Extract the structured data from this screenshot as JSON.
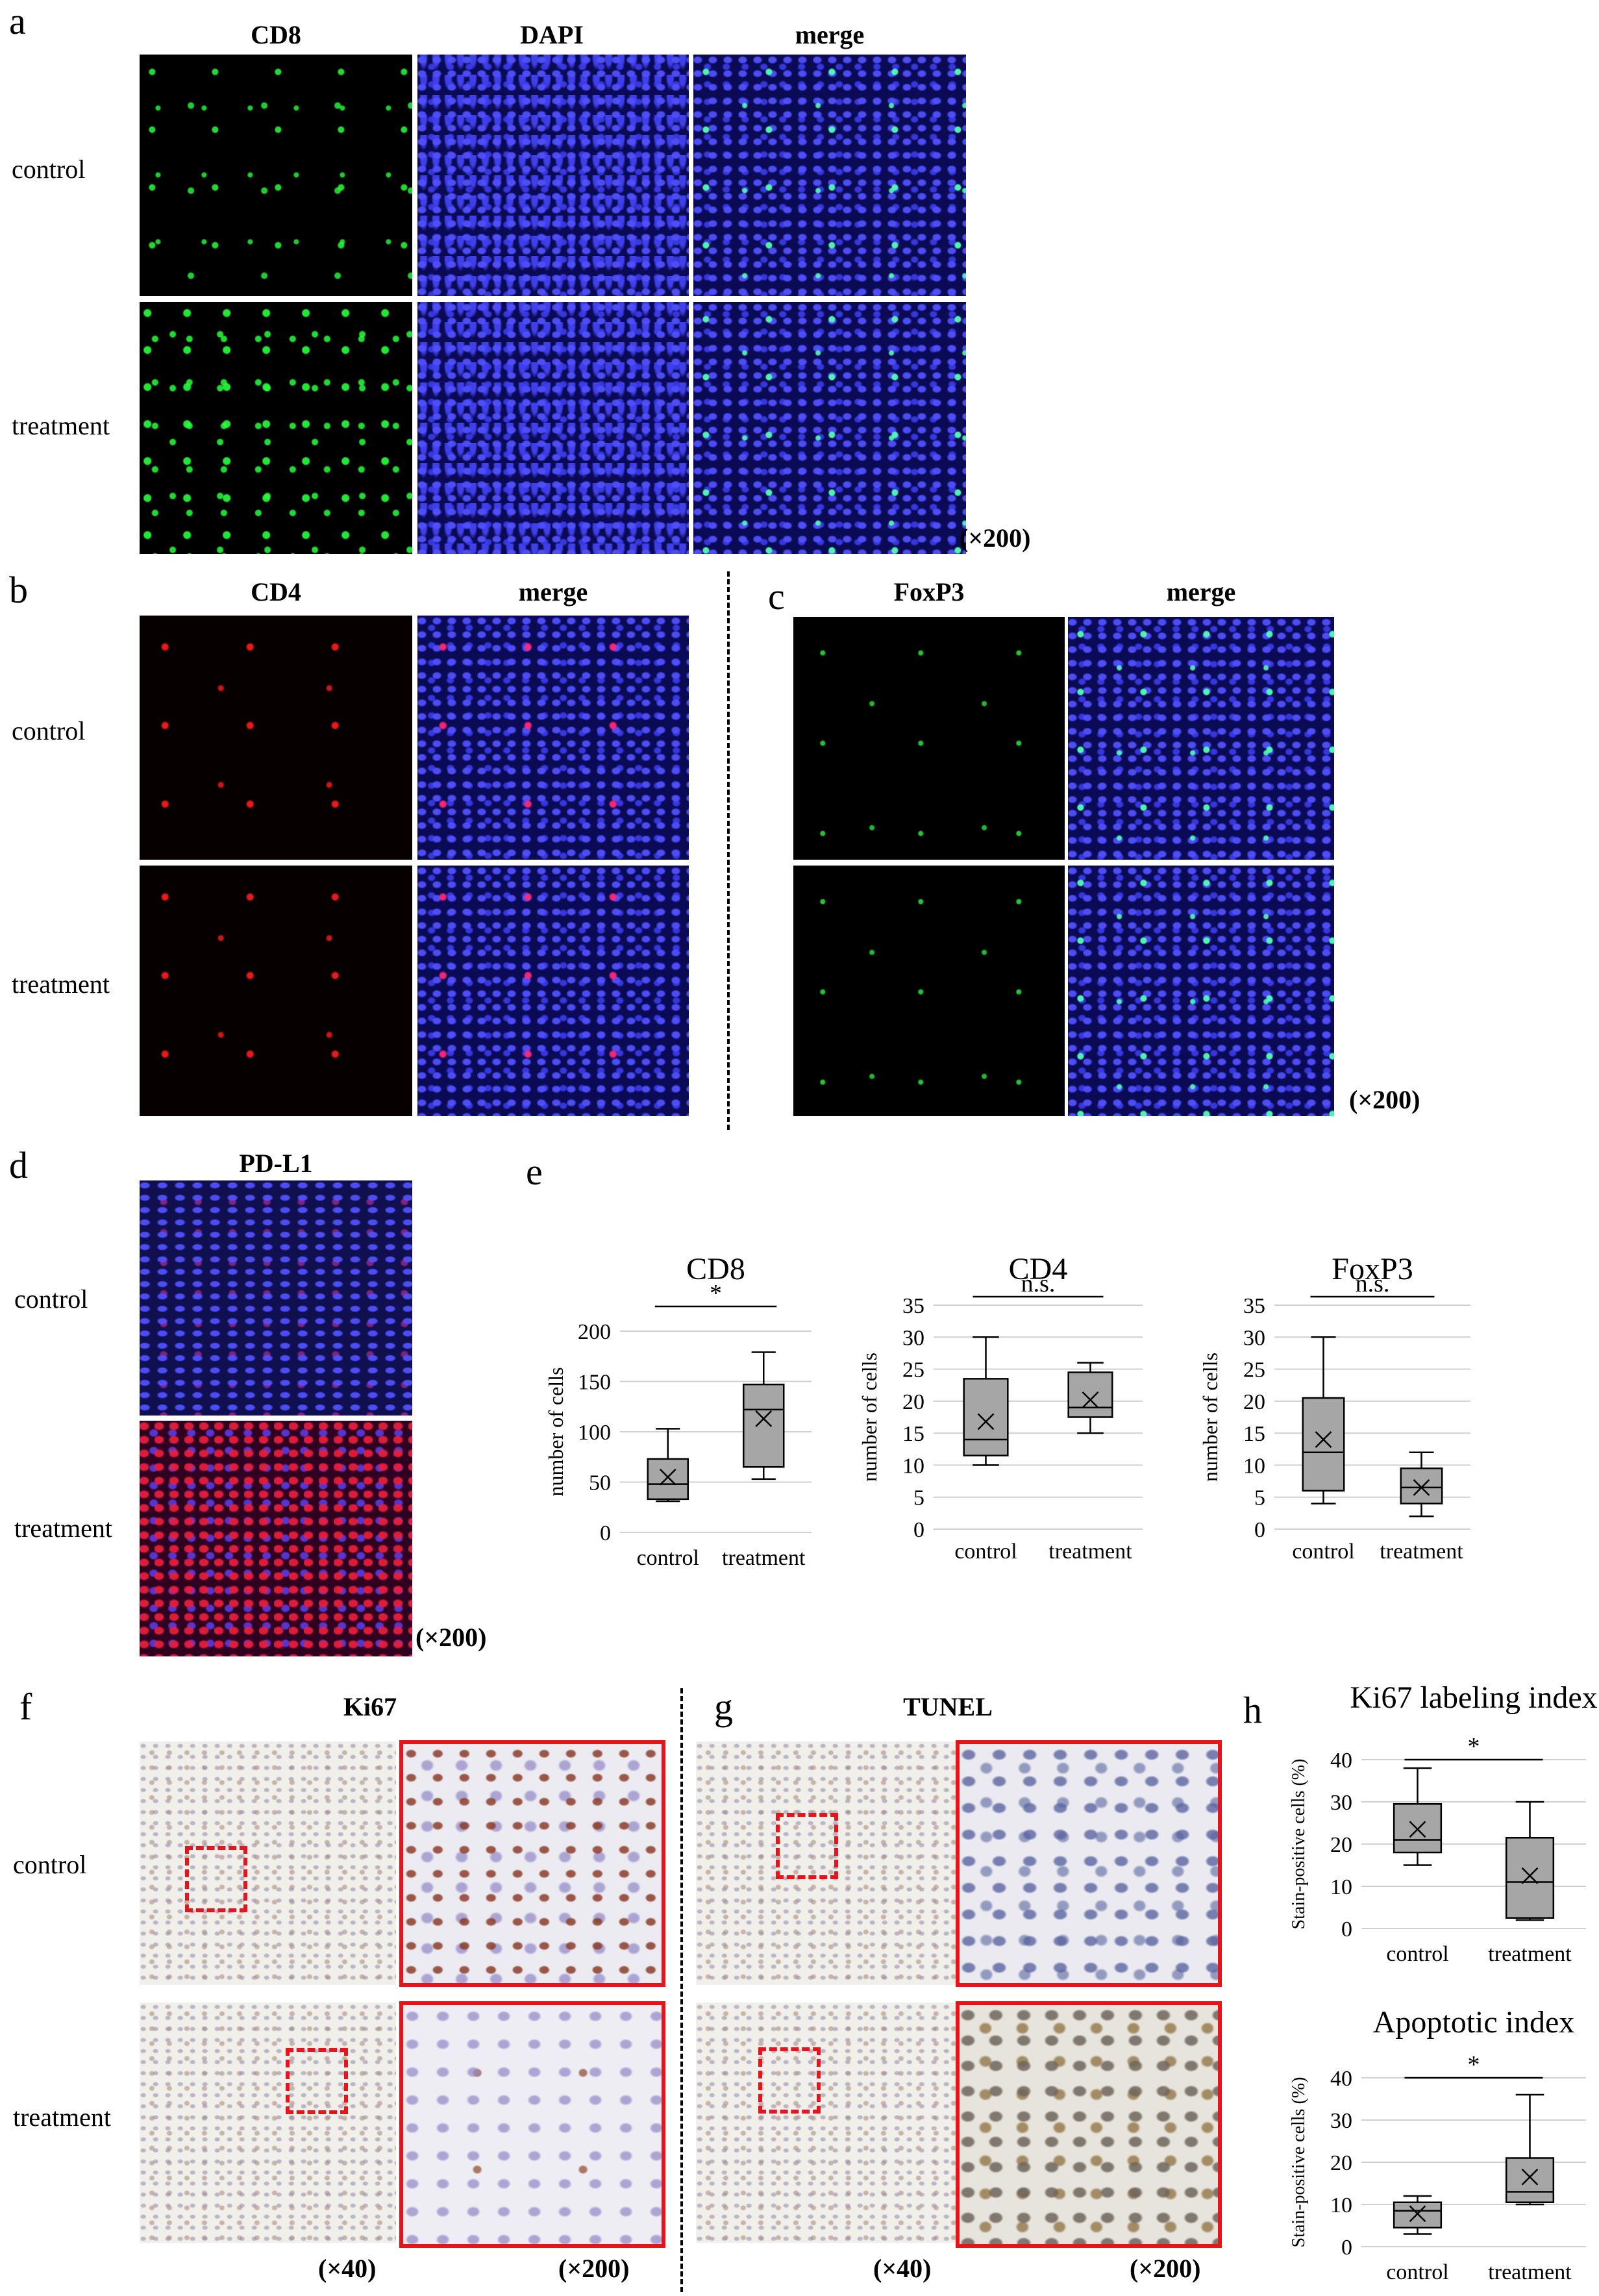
{
  "panels": {
    "a": {
      "letter": "a",
      "columns": [
        "CD8",
        "DAPI",
        "merge"
      ],
      "rows": [
        "control",
        "treatment"
      ],
      "magnification": "(×200)"
    },
    "b": {
      "letter": "b",
      "columns": [
        "CD4",
        "merge"
      ],
      "rows": [
        "control",
        "treatment"
      ]
    },
    "c": {
      "letter": "c",
      "columns": [
        "FoxP3",
        "merge"
      ],
      "magnification": "(×200)"
    },
    "d": {
      "letter": "d",
      "columns": [
        "PD-L1"
      ],
      "rows": [
        "control",
        "treatment"
      ],
      "magnification": "(×200)"
    },
    "e": {
      "letter": "e"
    },
    "f": {
      "letter": "f",
      "columns": [
        "Ki67"
      ],
      "rows": [
        "control",
        "treatment"
      ],
      "magnification_low": "(×40)",
      "magnification_high": "(×200)"
    },
    "g": {
      "letter": "g",
      "columns": [
        "TUNEL"
      ],
      "magnification_low": "(×40)",
      "magnification_high": "(×200)"
    },
    "h": {
      "letter": "h"
    }
  },
  "colors": {
    "box_fill": "#a6a6a6",
    "zoom_frame": "#e8141b",
    "grid": "#d0d0d0"
  },
  "chart_data": [
    {
      "id": "cd8",
      "type": "box",
      "title": "CD8",
      "ylabel": "number of cells",
      "categories": [
        "control",
        "treatment"
      ],
      "ylim": [
        0,
        200
      ],
      "yticks": [
        0,
        50,
        100,
        150,
        200
      ],
      "significance": "*",
      "boxes": [
        {
          "min": 31,
          "q1": 33,
          "median": 48,
          "q3": 73,
          "max": 103,
          "mean": 55
        },
        {
          "min": 53,
          "q1": 65,
          "median": 122,
          "q3": 147,
          "max": 179,
          "mean": 113
        }
      ]
    },
    {
      "id": "cd4",
      "type": "box",
      "title": "CD4",
      "ylabel": "number of cells",
      "categories": [
        "control",
        "treatment"
      ],
      "ylim": [
        0,
        35
      ],
      "yticks": [
        0,
        5,
        10,
        15,
        20,
        25,
        30,
        35
      ],
      "significance": "n.s.",
      "boxes": [
        {
          "min": 10,
          "q1": 11.5,
          "median": 14,
          "q3": 23.5,
          "max": 30,
          "mean": 16.8
        },
        {
          "min": 15,
          "q1": 17.5,
          "median": 19,
          "q3": 24.5,
          "max": 26,
          "mean": 20.2
        }
      ]
    },
    {
      "id": "foxp3",
      "type": "box",
      "title": "FoxP3",
      "ylabel": "number of cells",
      "categories": [
        "control",
        "treatment"
      ],
      "ylim": [
        0,
        35
      ],
      "yticks": [
        0,
        5,
        10,
        15,
        20,
        25,
        30,
        35
      ],
      "significance": "n.s.",
      "boxes": [
        {
          "min": 4,
          "q1": 6,
          "median": 12,
          "q3": 20.5,
          "max": 30,
          "mean": 14
        },
        {
          "min": 2,
          "q1": 4,
          "median": 6.5,
          "q3": 9.5,
          "max": 12,
          "mean": 6.5
        }
      ]
    },
    {
      "id": "ki67",
      "type": "box",
      "title": "Ki67 labeling index",
      "ylabel": "Stain-positive cells (%)",
      "categories": [
        "control",
        "treatment"
      ],
      "ylim": [
        0,
        40
      ],
      "yticks": [
        0,
        10,
        20,
        30,
        40
      ],
      "significance": "*",
      "boxes": [
        {
          "min": 15,
          "q1": 18,
          "median": 21,
          "q3": 29.5,
          "max": 38,
          "mean": 23.5
        },
        {
          "min": 2,
          "q1": 2.5,
          "median": 11,
          "q3": 21.5,
          "max": 30,
          "mean": 12.5
        }
      ]
    },
    {
      "id": "apoptotic",
      "type": "box",
      "title": "Apoptotic index",
      "ylabel": "Stain-positive cells (%)",
      "categories": [
        "control",
        "treatment"
      ],
      "ylim": [
        0,
        40
      ],
      "yticks": [
        0,
        10,
        20,
        30,
        40
      ],
      "significance": "*",
      "boxes": [
        {
          "min": 3,
          "q1": 4.5,
          "median": 8.5,
          "q3": 10.5,
          "max": 12,
          "mean": 7.8
        },
        {
          "min": 10,
          "q1": 10.5,
          "median": 13,
          "q3": 21,
          "max": 36,
          "mean": 16.5
        }
      ]
    }
  ]
}
